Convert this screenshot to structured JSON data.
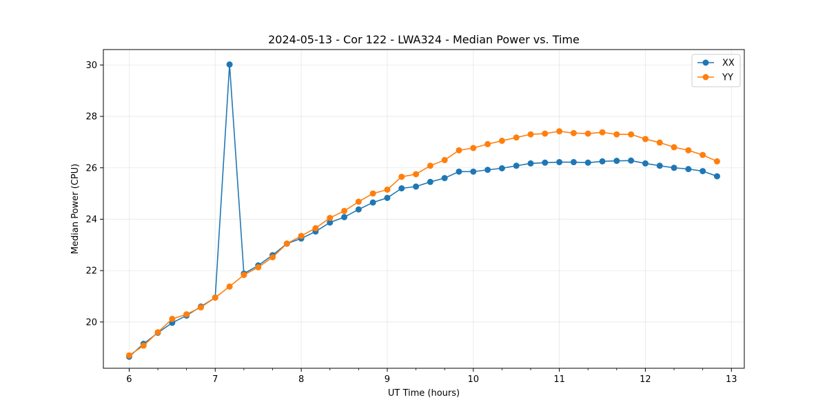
{
  "chart_data": {
    "type": "line",
    "title": "2024-05-13 - Cor 122 - LWA324 - Median Power vs. Time",
    "xlabel": "UT Time (hours)",
    "ylabel": "Median Power (CPU)",
    "xlim": [
      5.7,
      13.15
    ],
    "ylim": [
      18.2,
      30.6
    ],
    "xticks": [
      6,
      7,
      8,
      9,
      10,
      11,
      12,
      13
    ],
    "yticks": [
      20,
      22,
      24,
      26,
      28,
      30
    ],
    "grid": true,
    "legend_position": "top-right",
    "x": [
      6.0,
      6.1667,
      6.3333,
      6.5,
      6.6667,
      6.8333,
      7.0,
      7.1667,
      7.3333,
      7.5,
      7.6667,
      7.8333,
      8.0,
      8.1667,
      8.3333,
      8.5,
      8.6667,
      8.8333,
      9.0,
      9.1667,
      9.3333,
      9.5,
      9.6667,
      9.8333,
      10.0,
      10.1667,
      10.3333,
      10.5,
      10.6667,
      10.8333,
      11.0,
      11.1667,
      11.3333,
      11.5,
      11.6667,
      11.8333,
      12.0,
      12.1667,
      12.3333,
      12.5,
      12.6667,
      12.8333
    ],
    "series": [
      {
        "name": "XX",
        "color": "#1f77b4",
        "values": [
          18.65,
          19.15,
          19.58,
          19.97,
          20.25,
          20.6,
          20.95,
          30.02,
          21.88,
          22.2,
          22.6,
          23.05,
          23.25,
          23.52,
          23.87,
          24.08,
          24.38,
          24.65,
          24.83,
          25.2,
          25.27,
          25.45,
          25.6,
          25.85,
          25.85,
          25.92,
          25.98,
          26.08,
          26.17,
          26.2,
          26.22,
          26.22,
          26.2,
          26.25,
          26.27,
          26.28,
          26.17,
          26.08,
          26.0,
          25.95,
          25.87,
          25.67
        ]
      },
      {
        "name": "YY",
        "color": "#ff7f0e",
        "values": [
          18.7,
          19.08,
          19.6,
          20.12,
          20.3,
          20.57,
          20.95,
          21.38,
          21.83,
          22.13,
          22.52,
          23.05,
          23.35,
          23.65,
          24.05,
          24.32,
          24.68,
          25.0,
          25.15,
          25.65,
          25.75,
          26.08,
          26.3,
          26.68,
          26.77,
          26.92,
          27.05,
          27.18,
          27.3,
          27.33,
          27.42,
          27.35,
          27.33,
          27.38,
          27.3,
          27.3,
          27.12,
          26.98,
          26.8,
          26.68,
          26.5,
          26.25
        ]
      }
    ]
  }
}
